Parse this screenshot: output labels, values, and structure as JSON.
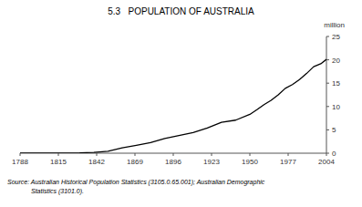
{
  "chart_data": {
    "type": "line",
    "title": "5.3   POPULATION OF AUSTRALIA",
    "ylabel": "million",
    "annotations": [
      "Source: Australian Historical Population Statistics (3105.0.65.001); Australian Demographic",
      "Statistics (3101.0)."
    ],
    "x": [
      1788,
      1800,
      1810,
      1820,
      1830,
      1840,
      1850,
      1860,
      1870,
      1880,
      1890,
      1900,
      1910,
      1920,
      1930,
      1940,
      1950,
      1955,
      1960,
      1965,
      1970,
      1975,
      1980,
      1985,
      1990,
      1995,
      2000,
      2004
    ],
    "values": [
      0.001,
      0.005,
      0.01,
      0.033,
      0.07,
      0.19,
      0.4,
      1.15,
      1.67,
      2.25,
      3.15,
      3.77,
      4.42,
      5.41,
      6.63,
      7.08,
      8.31,
      9.31,
      10.39,
      11.34,
      12.51,
      13.89,
      14.69,
      15.79,
      17.07,
      18.53,
      19.16,
      20.09
    ],
    "color": "#000000",
    "xlim": [
      1788,
      2004
    ],
    "xticks": [
      1788,
      1815,
      1842,
      1869,
      1896,
      1923,
      1950,
      1977,
      2004
    ],
    "ylim": [
      0,
      25
    ],
    "yticks": [
      0,
      5,
      10,
      15,
      20,
      25
    ],
    "grid": false
  }
}
